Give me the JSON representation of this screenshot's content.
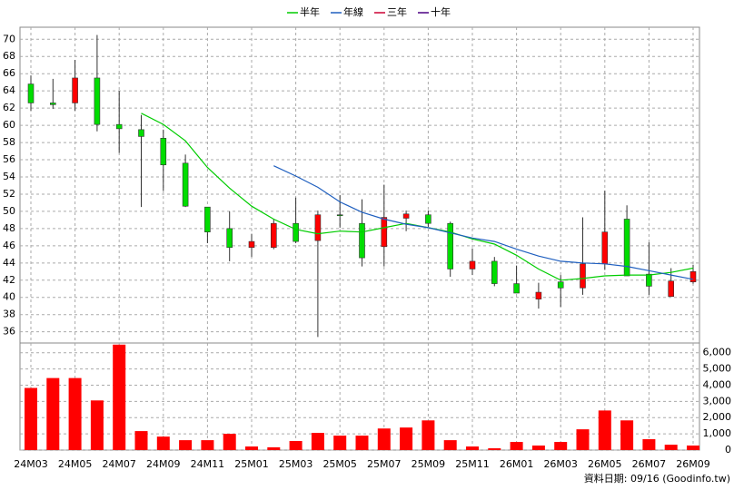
{
  "chart_data": {
    "type": "candlestick",
    "categories": [
      "24M03",
      null,
      "24M05",
      null,
      "24M07",
      null,
      "24M09",
      null,
      "24M11",
      null,
      "25M01",
      null,
      "25M03",
      null,
      "25M05",
      null,
      "25M07",
      null,
      "25M09",
      null,
      "25M11",
      null,
      "26M01",
      null,
      "26M03",
      null,
      "26M05",
      null,
      "26M07",
      null,
      "26M09"
    ],
    "open": [
      64.8,
      62.6,
      62.6,
      65.5,
      60.1,
      59.5,
      58.5,
      55.6,
      50.5,
      48.0,
      45.8,
      45.8,
      48.6,
      46.6,
      49.6,
      48.6,
      45.9,
      49.2,
      49.6,
      48.6,
      43.3,
      44.2,
      41.6,
      39.8,
      41.8,
      41.1,
      43.9,
      49.1,
      42.7,
      40.1,
      41.8
    ],
    "high": [
      65.8,
      65.4,
      67.6,
      70.5,
      64.0,
      61.2,
      59.5,
      56.6,
      50.5,
      50.0,
      47.4,
      49.1,
      51.6,
      50.1,
      51.9,
      51.4,
      53.1,
      50.1,
      50.1,
      48.8,
      45.7,
      44.7,
      43.7,
      41.7,
      42.6,
      49.3,
      52.4,
      50.7,
      46.4,
      43.4,
      43.8
    ],
    "low": [
      61.7,
      61.9,
      61.7,
      59.3,
      56.8,
      50.5,
      52.4,
      50.5,
      46.3,
      44.2,
      44.7,
      45.6,
      46.3,
      35.4,
      48.1,
      43.6,
      43.6,
      47.7,
      48.2,
      42.4,
      42.6,
      41.3,
      40.5,
      38.7,
      38.9,
      40.3,
      43.2,
      42.5,
      40.3,
      40.1,
      41.6
    ],
    "close": [
      62.6,
      62.4,
      65.5,
      60.1,
      59.6,
      58.7,
      55.4,
      50.6,
      47.6,
      45.8,
      46.5,
      48.6,
      46.5,
      49.6,
      49.5,
      44.6,
      49.3,
      49.7,
      48.6,
      43.3,
      44.2,
      41.6,
      40.5,
      40.6,
      41.1,
      43.9,
      47.6,
      42.5,
      41.3,
      41.9,
      43.0
    ],
    "up_color": "#ff0000",
    "down_color": "#00dd00",
    "edge_color": "#333333",
    "series": [
      {
        "name": "半年",
        "color": "#00cc00",
        "values": [
          null,
          null,
          null,
          null,
          null,
          61.4,
          60.1,
          58.2,
          55.1,
          52.7,
          50.6,
          49.1,
          47.9,
          47.4,
          47.7,
          47.6,
          48.1,
          48.6,
          48.1,
          47.6,
          46.8,
          46.2,
          44.9,
          43.3,
          42.0,
          42.2,
          42.5,
          42.6,
          42.6,
          42.9,
          43.4
        ]
      },
      {
        "name": "年線",
        "color": "#1f5fbf",
        "values": [
          null,
          null,
          null,
          null,
          null,
          null,
          null,
          null,
          null,
          null,
          null,
          55.3,
          54.1,
          52.8,
          51.1,
          49.9,
          49.1,
          48.5,
          48.1,
          47.5,
          46.9,
          46.5,
          45.6,
          44.8,
          44.2,
          44.0,
          43.9,
          43.6,
          43.1,
          42.6,
          42.1
        ]
      },
      {
        "name": "三年",
        "color": "#cc0033",
        "values": [
          null,
          null,
          null,
          null,
          null,
          null,
          null,
          null,
          null,
          null,
          null,
          null,
          null,
          null,
          null,
          null,
          null,
          null,
          null,
          null,
          null,
          null,
          null,
          null,
          null,
          null,
          null,
          null,
          null,
          null,
          null
        ]
      },
      {
        "name": "十年",
        "color": "#4b0082",
        "values": [
          null,
          null,
          null,
          null,
          null,
          null,
          null,
          null,
          null,
          null,
          null,
          null,
          null,
          null,
          null,
          null,
          null,
          null,
          null,
          null,
          null,
          null,
          null,
          null,
          null,
          null,
          null,
          null,
          null,
          null,
          null
        ]
      }
    ],
    "ylim": [
      34.7,
      71.4
    ],
    "yticks": [
      36,
      38,
      40,
      42,
      44,
      46,
      48,
      50,
      52,
      54,
      56,
      58,
      60,
      62,
      64,
      66,
      68,
      70
    ],
    "grid": true,
    "volume": {
      "color": "#ff0000",
      "values": [
        3830,
        4440,
        4440,
        3060,
        6500,
        1170,
        830,
        610,
        610,
        1000,
        220,
        170,
        560,
        1060,
        890,
        890,
        1330,
        1390,
        1830,
        610,
        220,
        110,
        500,
        280,
        500,
        1280,
        2440,
        1830,
        670,
        330,
        280
      ],
      "ylim": [
        0,
        6600
      ],
      "yticks": [
        0,
        {
          "value": 1000,
          "label": "1,000"
        },
        {
          "value": 2000,
          "label": "2,000"
        },
        {
          "value": 3000,
          "label": "3,000"
        },
        {
          "value": 4000,
          "label": "4,000"
        },
        {
          "value": 5000,
          "label": "5,000"
        },
        {
          "value": 6000,
          "label": "6,000"
        }
      ]
    },
    "footnote": "資料日期: 09/16 (Goodinfo.tw)"
  }
}
